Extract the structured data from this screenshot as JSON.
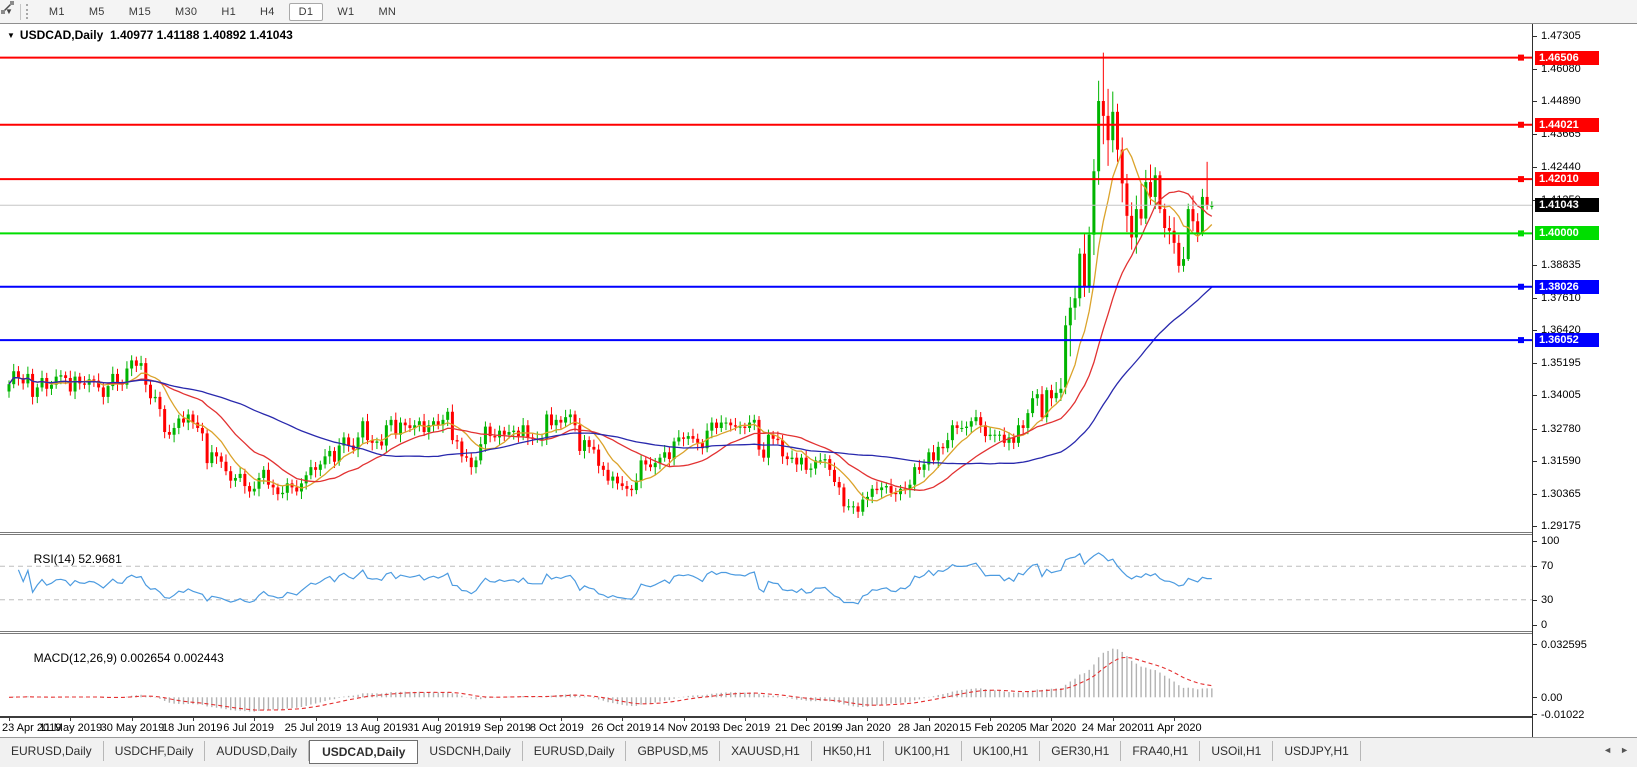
{
  "toolbar": {
    "timeframes": [
      "M1",
      "M5",
      "M15",
      "M30",
      "H1",
      "H4",
      "D1",
      "W1",
      "MN"
    ],
    "active_timeframe": "D1"
  },
  "chart": {
    "collapse_arrow": "▼",
    "symbol_title": "USDCAD,Daily",
    "ohlc_display": "1.40977 1.41188 1.40892 1.41043",
    "rsi_label": "RSI(14)",
    "rsi_value": "52.9681",
    "macd_label": "MACD(12,26,9)",
    "macd_values": "0.002654 0.002443"
  },
  "chart_data": {
    "type": "candlestick",
    "symbol": "USDCAD",
    "timeframe": "Daily",
    "title": "USDCAD,Daily",
    "price_axis_ticks": [
      "1.47305",
      "1.46080",
      "1.44890",
      "1.43665",
      "1.42440",
      "1.41250",
      "1.38835",
      "1.37610",
      "1.36420",
      "1.35195",
      "1.34005",
      "1.32780",
      "1.31590",
      "1.30365",
      "1.29175"
    ],
    "price_range": {
      "top": 1.4775,
      "bottom": 1.2895
    },
    "current_price": {
      "value": 1.41043,
      "label": "1.41043",
      "line_color": "#C6C6C6",
      "box_color": "#000000"
    },
    "horizontal_lines": [
      {
        "price": 1.46506,
        "label": "1.46506",
        "color": "#FF0000"
      },
      {
        "price": 1.44021,
        "label": "1.44021",
        "color": "#FF0000"
      },
      {
        "price": 1.4201,
        "label": "1.42010",
        "color": "#FF0000"
      },
      {
        "price": 1.4,
        "label": "1.40000",
        "color": "#00DE00"
      },
      {
        "price": 1.38026,
        "label": "1.38026",
        "color": "#0000FF"
      },
      {
        "price": 1.36052,
        "label": "1.36052",
        "color": "#0000FF"
      }
    ],
    "candle_colors": {
      "up": "#00B400",
      "down": "#FF0000"
    },
    "moving_averages": [
      {
        "period": 8,
        "color": "#DBA32B"
      },
      {
        "period": 20,
        "color": "#E23232"
      },
      {
        "period": 50,
        "color": "#2929AD"
      }
    ],
    "x_axis": {
      "tick_indices": [
        0,
        13,
        26,
        39,
        52,
        65,
        78,
        91,
        104,
        117,
        130,
        143,
        156,
        169,
        182,
        195,
        208,
        221,
        234,
        247
      ],
      "tick_labels": [
        "23 Apr 2019",
        "11 May 2019",
        "30 May 2019",
        "18 Jun 2019",
        "6 Jul 2019",
        "25 Jul 2019",
        "13 Aug 2019",
        "31 Aug 2019",
        "19 Sep 2019",
        "8 Oct 2019",
        "26 Oct 2019",
        "14 Nov 2019",
        "3 Dec 2019",
        "21 Dec 2019",
        "9 Jan 2020",
        "28 Jan 2020",
        "15 Feb 2020",
        "5 Mar 2020",
        "24 Mar 2020",
        "11 Apr 2020"
      ]
    },
    "first_open": 1.3415,
    "closes": [
      1.3442,
      1.349,
      1.3465,
      1.3445,
      1.348,
      1.3395,
      1.343,
      1.3465,
      1.3425,
      1.344,
      1.347,
      1.3475,
      1.3465,
      1.3415,
      1.347,
      1.3445,
      1.344,
      1.346,
      1.3455,
      1.343,
      1.3395,
      1.3435,
      1.348,
      1.3445,
      1.344,
      1.35,
      1.353,
      1.351,
      1.352,
      1.344,
      1.339,
      1.3395,
      1.335,
      1.3265,
      1.3255,
      1.328,
      1.3315,
      1.33,
      1.333,
      1.33,
      1.328,
      1.326,
      1.315,
      1.319,
      1.3175,
      1.3155,
      1.312,
      1.3085,
      1.3095,
      1.311,
      1.3065,
      1.3045,
      1.3055,
      1.3095,
      1.3125,
      1.307,
      1.306,
      1.3035,
      1.304,
      1.3075,
      1.306,
      1.3045,
      1.3075,
      1.3105,
      1.3135,
      1.3125,
      1.3145,
      1.3175,
      1.3195,
      1.3155,
      1.3215,
      1.3245,
      1.3215,
      1.32,
      1.3245,
      1.3305,
      1.3235,
      1.3225,
      1.323,
      1.3215,
      1.329,
      1.331,
      1.3255,
      1.33,
      1.329,
      1.328,
      1.329,
      1.3305,
      1.3265,
      1.329,
      1.3305,
      1.329,
      1.331,
      1.334,
      1.3235,
      1.323,
      1.3175,
      1.317,
      1.3135,
      1.316,
      1.322,
      1.3285,
      1.325,
      1.3245,
      1.327,
      1.3255,
      1.3265,
      1.327,
      1.325,
      1.329,
      1.3245,
      1.324,
      1.324,
      1.324,
      1.333,
      1.329,
      1.331,
      1.33,
      1.332,
      1.333,
      1.329,
      1.3195,
      1.3235,
      1.321,
      1.32,
      1.314,
      1.3125,
      1.3085,
      1.31,
      1.3075,
      1.3065,
      1.3055,
      1.305,
      1.3085,
      1.316,
      1.3145,
      1.3135,
      1.315,
      1.317,
      1.319,
      1.3165,
      1.323,
      1.3245,
      1.324,
      1.325,
      1.324,
      1.3225,
      1.3205,
      1.327,
      1.33,
      1.328,
      1.33,
      1.33,
      1.329,
      1.3285,
      1.3285,
      1.328,
      1.33,
      1.331,
      1.32,
      1.317,
      1.3255,
      1.324,
      1.3235,
      1.3175,
      1.3165,
      1.317,
      1.3145,
      1.317,
      1.3125,
      1.313,
      1.316,
      1.316,
      1.3165,
      1.3125,
      1.308,
      1.306,
      1.299,
      1.299,
      1.299,
      1.297,
      1.3015,
      1.3025,
      1.3055,
      1.305,
      1.306,
      1.3065,
      1.304,
      1.3035,
      1.3055,
      1.305,
      1.307,
      1.3135,
      1.3125,
      1.3145,
      1.319,
      1.316,
      1.321,
      1.3205,
      1.3235,
      1.329,
      1.328,
      1.328,
      1.3285,
      1.3305,
      1.332,
      1.329,
      1.325,
      1.3255,
      1.3255,
      1.3255,
      1.3225,
      1.3245,
      1.3225,
      1.329,
      1.328,
      1.3335,
      1.339,
      1.3405,
      1.332,
      1.342,
      1.339,
      1.341,
      1.3425,
      1.366,
      1.3725,
      1.376,
      1.3925,
      1.38,
      1.3995,
      1.423,
      1.449,
      1.4435,
      1.4345,
      1.445,
      1.431,
      1.4185,
      1.4065,
      1.3985,
      1.409,
      1.4055,
      1.419,
      1.4135,
      1.4215,
      1.409,
      1.402,
      1.401,
      1.3965,
      1.388,
      1.3905,
      1.409,
      1.4045,
      1.4,
      1.4135,
      1.4105,
      1.41043
    ],
    "ohlc_overrides": {
      "219": [
        1.3405,
        1.3435,
        1.3305,
        1.332
      ],
      "220": [
        1.332,
        1.343,
        1.33,
        1.342
      ],
      "221": [
        1.342,
        1.344,
        1.336,
        1.339
      ],
      "222": [
        1.339,
        1.345,
        1.3375,
        1.341
      ],
      "223": [
        1.341,
        1.3465,
        1.338,
        1.3425
      ],
      "224": [
        1.343,
        1.3695,
        1.3405,
        1.366
      ],
      "225": [
        1.366,
        1.3765,
        1.3545,
        1.3725
      ],
      "226": [
        1.3725,
        1.3805,
        1.368,
        1.376
      ],
      "227": [
        1.376,
        1.3945,
        1.373,
        1.3925
      ],
      "228": [
        1.3925,
        1.4,
        1.3765,
        1.38
      ],
      "229": [
        1.38,
        1.4025,
        1.378,
        1.3995
      ],
      "230": [
        1.3995,
        1.4275,
        1.392,
        1.423
      ],
      "231": [
        1.423,
        1.4565,
        1.418,
        1.449
      ],
      "232": [
        1.449,
        1.4669,
        1.433,
        1.4435
      ],
      "233": [
        1.4435,
        1.4535,
        1.425,
        1.4345
      ],
      "234": [
        1.4345,
        1.4525,
        1.43,
        1.445
      ],
      "235": [
        1.445,
        1.448,
        1.4265,
        1.431
      ],
      "236": [
        1.431,
        1.4355,
        1.4115,
        1.4185
      ],
      "237": [
        1.4185,
        1.422,
        1.4005,
        1.4065
      ],
      "238": [
        1.4065,
        1.4115,
        1.394,
        1.3985
      ],
      "239": [
        1.3985,
        1.414,
        1.3925,
        1.409
      ],
      "240": [
        1.409,
        1.4185,
        1.403,
        1.4055
      ],
      "241": [
        1.4055,
        1.4235,
        1.4035,
        1.419
      ],
      "242": [
        1.419,
        1.4255,
        1.4105,
        1.4135
      ],
      "243": [
        1.4135,
        1.4245,
        1.409,
        1.4215
      ],
      "244": [
        1.4215,
        1.423,
        1.4075,
        1.409
      ],
      "245": [
        1.409,
        1.411,
        1.3985,
        1.402
      ],
      "246": [
        1.402,
        1.4065,
        1.396,
        1.401
      ],
      "247": [
        1.401,
        1.406,
        1.3925,
        1.3965
      ],
      "248": [
        1.3965,
        1.3995,
        1.3855,
        1.388
      ],
      "249": [
        1.388,
        1.395,
        1.3858,
        1.3905
      ],
      "250": [
        1.3905,
        1.411,
        1.3898,
        1.409
      ],
      "251": [
        1.409,
        1.414,
        1.4008,
        1.4045
      ],
      "252": [
        1.4045,
        1.4075,
        1.3968,
        1.4
      ],
      "253": [
        1.4,
        1.4165,
        1.399,
        1.4135
      ],
      "254": [
        1.4135,
        1.4265,
        1.4088,
        1.4105
      ],
      "255": [
        1.40977,
        1.41188,
        1.40892,
        1.41043
      ]
    },
    "rsi": {
      "period": 14,
      "levels": [
        70,
        30
      ],
      "scale_labels": [
        "100",
        "70",
        "30",
        "0"
      ],
      "color": "#4C9BE0",
      "level_color": "#BDBDBD"
    },
    "macd": {
      "fast": 12,
      "slow": 26,
      "signal": 9,
      "scale_max": 0.032595,
      "scale_min": -0.01022,
      "scale_labels": [
        "0.032595",
        "0.00",
        "-0.01022"
      ],
      "histogram_color": "#B2B2B2",
      "signal_color": "#E53030"
    }
  },
  "bottom_tabs": {
    "tabs": [
      {
        "label": "EURUSD,Daily",
        "active": false
      },
      {
        "label": "USDCHF,Daily",
        "active": false
      },
      {
        "label": "AUDUSD,Daily",
        "active": false
      },
      {
        "label": "USDCAD,Daily",
        "active": true
      },
      {
        "label": "USDCNH,Daily",
        "active": false
      },
      {
        "label": "EURUSD,Daily",
        "active": false
      },
      {
        "label": "GBPUSD,M5",
        "active": false
      },
      {
        "label": "XAUUSD,H1",
        "active": false
      },
      {
        "label": "HK50,H1",
        "active": false
      },
      {
        "label": "UK100,H1",
        "active": false
      },
      {
        "label": "UK100,H1",
        "active": false
      },
      {
        "label": "GER30,H1",
        "active": false
      },
      {
        "label": "FRA40,H1",
        "active": false
      },
      {
        "label": "USOil,H1",
        "active": false
      },
      {
        "label": "USDJPY,H1",
        "active": false
      }
    ],
    "scroll_left": "◄",
    "scroll_right": "►"
  }
}
